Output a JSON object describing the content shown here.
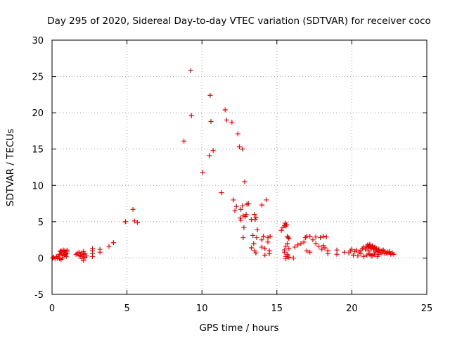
{
  "chart_data": {
    "type": "scatter",
    "title": "Day 295 of 2020, Sidereal Day-to-day VTEC variation (SDTVAR) for receiver coco",
    "xlabel": "GPS time / hours",
    "ylabel": "SDTVAR / TECUs",
    "xlim": [
      0,
      25
    ],
    "ylim": [
      -5,
      30
    ],
    "xticks": [
      "0",
      "5",
      "10",
      "15",
      "20",
      "25"
    ],
    "yticks": [
      "-5",
      "0",
      "5",
      "10",
      "15",
      "20",
      "25",
      "30"
    ],
    "grid": true,
    "marker": "plus",
    "color": "#ee0000",
    "series": [
      {
        "name": "SDTVAR",
        "x": [
          0.05,
          0.1,
          0.2,
          0.3,
          0.35,
          0.45,
          0.5,
          0.55,
          0.6,
          0.65,
          0.7,
          0.75,
          0.8,
          0.85,
          0.9,
          0.95,
          1.0,
          1.0,
          0.6,
          0.7,
          0.9,
          0.5,
          0.8,
          1.0,
          1.6,
          1.7,
          1.8,
          1.9,
          2.0,
          2.0,
          2.1,
          2.1,
          2.2,
          2.2,
          2.3,
          1.8,
          2.0,
          2.1,
          2.7,
          2.7,
          2.7,
          2.7,
          3.2,
          3.2,
          3.8,
          4.1,
          4.9,
          5.4,
          5.5,
          5.7,
          8.8,
          9.25,
          9.3,
          10.05,
          10.5,
          10.55,
          10.6,
          10.75,
          11.3,
          11.55,
          11.65,
          12.0,
          12.1,
          12.2,
          12.3,
          12.4,
          12.5,
          12.55,
          12.6,
          12.7,
          12.75,
          12.8,
          12.85,
          12.9,
          12.95,
          12.6,
          12.7,
          12.75,
          13.0,
          13.1,
          13.3,
          13.4,
          13.45,
          13.5,
          13.55,
          13.6,
          13.65,
          13.7,
          13.3,
          13.5,
          13.6,
          14.0,
          14.1,
          14.2,
          14.3,
          14.4,
          14.5,
          14.55,
          14.0,
          14.2,
          14.5,
          14.0,
          14.4,
          15.3,
          15.4,
          15.5,
          15.55,
          15.6,
          15.65,
          15.7,
          15.75,
          15.8,
          15.5,
          15.6,
          15.7,
          15.8,
          15.6,
          15.7,
          15.8,
          15.5,
          15.6,
          15.7,
          16.1,
          16.2,
          16.4,
          16.6,
          16.8,
          16.9,
          17.0,
          17.2,
          17.4,
          17.6,
          17.8,
          18.0,
          18.1,
          18.2,
          18.4,
          17.6,
          17.9,
          18.1,
          18.3,
          17.0,
          17.2,
          18.4,
          19.0,
          19.0,
          19.5,
          19.8,
          19.9,
          20.0,
          20.1,
          20.2,
          20.3,
          20.4,
          20.5,
          20.6,
          20.7,
          20.8,
          20.9,
          21.0,
          21.05,
          21.1,
          21.15,
          21.2,
          21.25,
          21.3,
          21.35,
          21.4,
          21.45,
          21.5,
          21.55,
          21.6,
          21.65,
          21.7,
          21.75,
          21.8,
          21.9,
          22.0,
          22.1,
          22.2,
          22.3,
          22.4,
          22.5,
          22.6,
          22.7,
          22.8,
          21.2,
          21.4,
          21.6,
          21.8,
          22.0,
          22.2,
          21.1,
          21.3,
          21.5,
          21.7,
          20.6,
          20.8,
          21.0,
          21.2,
          21.4,
          22.4,
          22.6
        ],
        "y": [
          0.0,
          0.1,
          -0.1,
          0.2,
          0.0,
          0.3,
          0.5,
          0.9,
          1.0,
          0.6,
          0.3,
          1.1,
          0.8,
          1.0,
          0.5,
          0.2,
          0.9,
          1.1,
          -0.2,
          0.0,
          0.7,
          -0.1,
          0.4,
          0.6,
          0.5,
          0.6,
          0.3,
          0.4,
          0.7,
          0.2,
          0.5,
          -0.3,
          0.6,
          0.1,
          0.3,
          0.8,
          -0.1,
          0.9,
          0.2,
          0.6,
          1.0,
          1.3,
          0.8,
          1.2,
          1.6,
          2.1,
          5.0,
          6.7,
          5.1,
          4.9,
          16.1,
          25.8,
          19.6,
          11.8,
          14.1,
          22.4,
          18.8,
          14.8,
          9.0,
          20.4,
          19.0,
          18.7,
          8.0,
          6.5,
          7.1,
          17.1,
          15.3,
          5.5,
          5.2,
          15.0,
          2.8,
          4.2,
          10.5,
          5.7,
          6.0,
          6.7,
          7.2,
          5.8,
          7.4,
          7.5,
          5.3,
          3.1,
          2.0,
          6.0,
          5.3,
          5.6,
          2.8,
          3.9,
          1.4,
          1.0,
          0.7,
          7.3,
          3.0,
          1.3,
          8.0,
          2.2,
          1.0,
          3.0,
          1.5,
          0.4,
          0.6,
          2.5,
          2.8,
          3.8,
          4.2,
          4.5,
          4.8,
          4.4,
          4.6,
          3.0,
          2.8,
          2.7,
          1.1,
          1.6,
          2.0,
          1.3,
          0.2,
          0.5,
          0.1,
          0.8,
          -0.1,
          0.3,
          0.0,
          1.5,
          1.8,
          2.0,
          2.2,
          2.8,
          3.0,
          3.0,
          2.5,
          2.0,
          1.6,
          1.2,
          1.7,
          1.4,
          1.0,
          2.9,
          2.8,
          3.0,
          2.9,
          1.0,
          0.8,
          0.6,
          1.1,
          0.5,
          0.8,
          0.7,
          1.0,
          1.2,
          0.4,
          0.9,
          1.1,
          0.3,
          0.8,
          1.0,
          1.3,
          1.5,
          1.2,
          1.6,
          1.8,
          1.4,
          1.7,
          1.9,
          1.5,
          1.3,
          1.6,
          1.7,
          1.2,
          1.4,
          1.5,
          1.0,
          1.3,
          0.9,
          1.1,
          1.2,
          0.8,
          1.0,
          1.1,
          0.9,
          0.7,
          0.8,
          0.9,
          0.6,
          0.7,
          0.5,
          0.6,
          0.4,
          0.8,
          0.5,
          0.7,
          0.6,
          1.0,
          0.3,
          0.5,
          0.2,
          0.6,
          0.2,
          0.4,
          0.5,
          0.3,
          0.7,
          0.5
        ]
      }
    ]
  }
}
